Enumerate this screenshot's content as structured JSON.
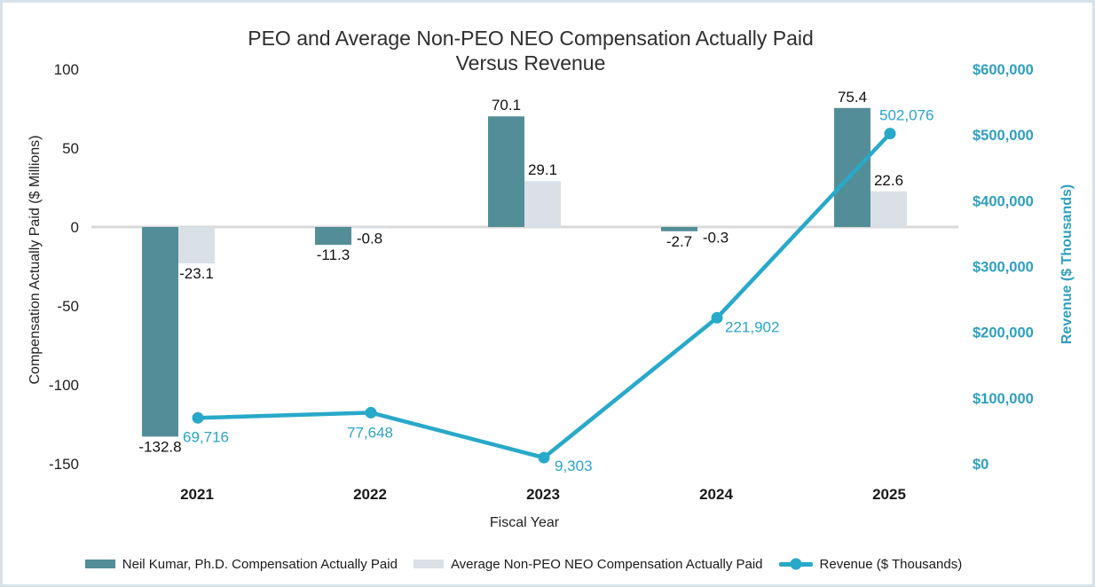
{
  "header": {
    "title_line1": "PEO and Average Non-PEO NEO Compensation Actually Paid",
    "title_line2": "Versus Revenue"
  },
  "chart_data": {
    "type": "combo-bar-line",
    "title": "PEO and Average Non-PEO NEO Compensation Actually Paid Versus Revenue",
    "xlabel": "Fiscal Year",
    "categories": [
      "2021",
      "2022",
      "2023",
      "2024",
      "2025"
    ],
    "grid": false,
    "legend_position": "bottom",
    "zero_line_color": "#d9d9d9",
    "left_axis": {
      "title": "Compensation Actually Paid ($ Millions)",
      "ticks": [
        "100",
        "50",
        "0",
        "-50",
        "-100",
        "-150"
      ],
      "ylim": [
        -150,
        100
      ],
      "text_color": "#1f1f1f"
    },
    "right_axis": {
      "title": "Revenue ($ Thousands)",
      "ticks": [
        "$600,000",
        "$500,000",
        "$400,000",
        "$300,000",
        "$200,000",
        "$100,000",
        "$0"
      ],
      "ylim": [
        0,
        600000
      ],
      "text_color": "#2d9fc0"
    },
    "series": [
      {
        "name": "Neil Kumar, Ph.D. Compensation Actually Paid",
        "type": "bar",
        "axis": "left",
        "color": "#538e98",
        "values": [
          -132.8,
          -11.3,
          70.1,
          -2.7,
          75.4
        ],
        "labels": [
          "-132.8",
          "-11.3",
          "70.1",
          "-2.7",
          "75.4"
        ]
      },
      {
        "name": "Average Non-PEO NEO Compensation Actually Paid",
        "type": "bar",
        "axis": "left",
        "color": "#d9e1e6",
        "values": [
          -23.1,
          -0.8,
          29.1,
          -0.3,
          22.6
        ],
        "labels": [
          "-23.1",
          "-0.8",
          "29.1",
          "-0.3",
          "22.6"
        ]
      },
      {
        "name": "Revenue ($ Thousands)",
        "type": "line",
        "axis": "right",
        "color": "#28a9c9",
        "label_color": "#2aa5c6",
        "values": [
          69716,
          77648,
          9303,
          221902,
          502076
        ],
        "labels": [
          "69,716",
          "77,648",
          "9,303",
          "221,902",
          "502,076"
        ]
      }
    ],
    "value_label_color": "#111111"
  }
}
